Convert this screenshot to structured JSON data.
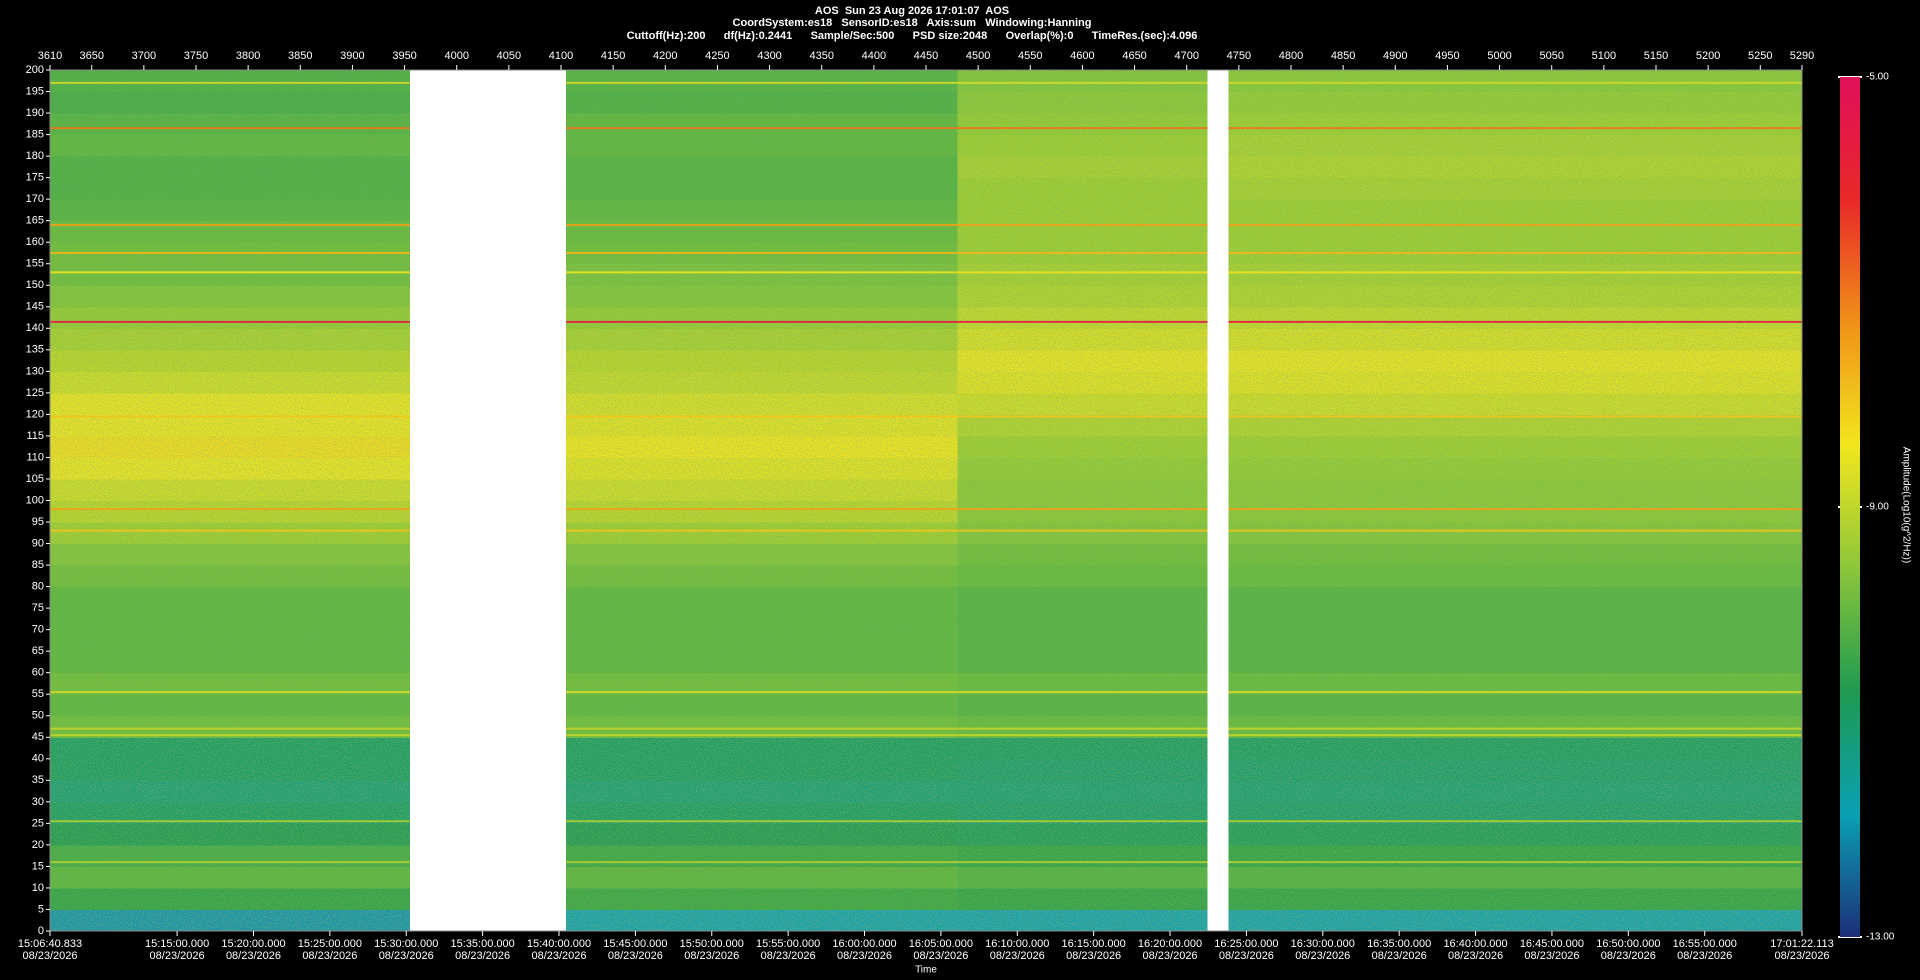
{
  "chart_data": {
    "type": "heatmap",
    "title": "AOS  Sun 23 Aug 2026 17:01:07  AOS",
    "subtitle": "CoordSystem:es18   SensorID:es18   Axis:sum   Windowing:Hanning",
    "info": "Cuttoff(Hz):200      df(Hz):0.2441      Sample/Sec:500      PSD size:2048      Overlap(%):0      TimeRes.(sec):4.096",
    "xlabel": "Time",
    "colorbar_label": "Amplitude(Log10(g^2/Hz))",
    "xlim": [
      3610,
      5290
    ],
    "xticks": [
      3610,
      3650,
      3700,
      3750,
      3800,
      3850,
      3900,
      3950,
      4000,
      4050,
      4100,
      4150,
      4200,
      4250,
      4300,
      4350,
      4400,
      4450,
      4500,
      4550,
      4600,
      4650,
      4700,
      4750,
      4800,
      4850,
      4900,
      4950,
      5000,
      5050,
      5100,
      5150,
      5200,
      5250,
      5290
    ],
    "x2ticks": [
      {
        "value": 3610,
        "label": "15:06:40.833"
      },
      {
        "value": 3731.87,
        "label": "15:15:00.000"
      },
      {
        "value": 3805.11,
        "label": "15:20:00.000"
      },
      {
        "value": 3878.35,
        "label": "15:25:00.000"
      },
      {
        "value": 3951.59,
        "label": "15:30:00.000"
      },
      {
        "value": 4024.84,
        "label": "15:35:00.000"
      },
      {
        "value": 4098.08,
        "label": "15:40:00.000"
      },
      {
        "value": 4171.32,
        "label": "15:45:00.000"
      },
      {
        "value": 4244.56,
        "label": "15:50:00.000"
      },
      {
        "value": 4317.8,
        "label": "15:55:00.000"
      },
      {
        "value": 4391.04,
        "label": "16:00:00.000"
      },
      {
        "value": 4464.29,
        "label": "16:05:00.000"
      },
      {
        "value": 4537.53,
        "label": "16:10:00.000"
      },
      {
        "value": 4610.77,
        "label": "16:15:00.000"
      },
      {
        "value": 4684.01,
        "label": "16:20:00.000"
      },
      {
        "value": 4757.25,
        "label": "16:25:00.000"
      },
      {
        "value": 4830.49,
        "label": "16:30:00.000"
      },
      {
        "value": 4903.74,
        "label": "16:35:00.000"
      },
      {
        "value": 4976.98,
        "label": "16:40:00.000"
      },
      {
        "value": 5050.22,
        "label": "16:45:00.000"
      },
      {
        "value": 5123.46,
        "label": "16:50:00.000"
      },
      {
        "value": 5196.7,
        "label": "16:55:00.000"
      },
      {
        "value": 5290,
        "label": "17:01:22.113"
      }
    ],
    "x2tick_dates": [
      "08/23/2026",
      "08/23/2026",
      "08/23/2026",
      "08/23/2026",
      "08/23/2026",
      "08/23/2026",
      "08/23/2026",
      "08/23/2026",
      "08/23/2026",
      "08/23/2026",
      "08/23/2026",
      "08/23/2026",
      "08/23/2026",
      "08/23/2026",
      "08/23/2026",
      "08/23/2026",
      "08/23/2026",
      "08/23/2026",
      "08/23/2026",
      "08/23/2026",
      "08/23/2026",
      "08/23/2026",
      "08/23/2026"
    ],
    "ylim": [
      0,
      200
    ],
    "yticks": [
      0,
      5,
      10,
      15,
      20,
      25,
      30,
      35,
      40,
      45,
      50,
      55,
      60,
      65,
      70,
      75,
      80,
      85,
      90,
      95,
      100,
      105,
      110,
      115,
      120,
      125,
      130,
      135,
      140,
      145,
      150,
      155,
      160,
      165,
      170,
      175,
      180,
      185,
      190,
      195,
      200
    ],
    "clim": [
      -13,
      -5
    ],
    "cticks": [
      {
        "value": -5,
        "label": "-5.00"
      },
      {
        "value": -9,
        "label": "-9.00"
      },
      {
        "value": -13,
        "label": "-13.00"
      }
    ],
    "colormap": [
      "#1c2f7a",
      "#0aa0b4",
      "#1e9a50",
      "#8cc63a",
      "#f2e61e",
      "#f09018",
      "#e82828",
      "#e0105a"
    ],
    "grid": false,
    "xbins": [
      3610,
      3955,
      4105,
      4480,
      4720,
      4740,
      5290
    ],
    "ybins": [
      0,
      5,
      10,
      15,
      20,
      25,
      30,
      35,
      40,
      45,
      50,
      55,
      60,
      65,
      70,
      75,
      80,
      85,
      90,
      95,
      100,
      105,
      110,
      115,
      120,
      125,
      130,
      135,
      140,
      145,
      150,
      155,
      160,
      165,
      170,
      175,
      180,
      185,
      190,
      195,
      200
    ],
    "values": [
      [
        -12.0,
        null,
        -11.8,
        -11.8,
        null,
        -11.8
      ],
      [
        -10.5,
        null,
        -10.4,
        -10.5,
        null,
        -10.5
      ],
      [
        -10.0,
        null,
        -10.0,
        -10.1,
        null,
        -10.1
      ],
      [
        -10.3,
        null,
        -10.4,
        -10.5,
        null,
        -10.5
      ],
      [
        -10.8,
        null,
        -10.8,
        -10.9,
        null,
        -10.9
      ],
      [
        -11.0,
        null,
        -11.0,
        -11.1,
        null,
        -11.1
      ],
      [
        -11.2,
        null,
        -11.2,
        -11.2,
        null,
        -11.2
      ],
      [
        -11.0,
        null,
        -11.0,
        -11.1,
        null,
        -11.1
      ],
      [
        -11.0,
        null,
        -11.0,
        -11.0,
        null,
        -11.0
      ],
      [
        -9.8,
        null,
        -9.8,
        -9.9,
        null,
        -9.9
      ],
      [
        -10.0,
        null,
        -10.0,
        -10.1,
        null,
        -10.1
      ],
      [
        -9.8,
        null,
        -9.8,
        -9.9,
        null,
        -9.9
      ],
      [
        -10.0,
        null,
        -10.0,
        -10.1,
        null,
        -10.1
      ],
      [
        -10.0,
        null,
        -10.0,
        -10.1,
        null,
        -10.1
      ],
      [
        -10.0,
        null,
        -10.0,
        -10.1,
        null,
        -10.1
      ],
      [
        -10.0,
        null,
        -10.0,
        -10.1,
        null,
        -10.1
      ],
      [
        -9.8,
        null,
        -9.8,
        -9.9,
        null,
        -9.9
      ],
      [
        -9.6,
        null,
        -9.6,
        -9.8,
        null,
        -9.8
      ],
      [
        -9.3,
        null,
        -9.3,
        -9.6,
        null,
        -9.6
      ],
      [
        -9.0,
        null,
        -9.0,
        -9.5,
        null,
        -9.5
      ],
      [
        -8.8,
        null,
        -8.8,
        -9.5,
        null,
        -9.5
      ],
      [
        -8.5,
        null,
        -8.6,
        -9.4,
        null,
        -9.4
      ],
      [
        -8.3,
        null,
        -8.4,
        -9.3,
        null,
        -9.3
      ],
      [
        -8.5,
        null,
        -8.6,
        -9.1,
        null,
        -9.1
      ],
      [
        -8.5,
        null,
        -8.7,
        -8.8,
        null,
        -8.8
      ],
      [
        -8.8,
        null,
        -8.9,
        -8.6,
        null,
        -8.6
      ],
      [
        -9.0,
        null,
        -9.0,
        -8.5,
        null,
        -8.5
      ],
      [
        -9.2,
        null,
        -9.2,
        -8.7,
        null,
        -8.7
      ],
      [
        -9.4,
        null,
        -9.4,
        -8.9,
        null,
        -8.9
      ],
      [
        -9.6,
        null,
        -9.6,
        -9.1,
        null,
        -9.1
      ],
      [
        -9.8,
        null,
        -9.7,
        -9.2,
        null,
        -9.2
      ],
      [
        -9.8,
        null,
        -9.8,
        -9.3,
        null,
        -9.3
      ],
      [
        -9.9,
        null,
        -9.9,
        -9.3,
        null,
        -9.3
      ],
      [
        -10.1,
        null,
        -10.0,
        -9.3,
        null,
        -9.3
      ],
      [
        -10.2,
        null,
        -10.1,
        -9.3,
        null,
        -9.2
      ],
      [
        -10.2,
        null,
        -10.1,
        -9.2,
        null,
        -9.1
      ],
      [
        -10.0,
        null,
        -10.0,
        -9.3,
        null,
        -9.2
      ],
      [
        -10.1,
        null,
        -10.0,
        -9.4,
        null,
        -9.3
      ],
      [
        -10.3,
        null,
        -10.2,
        -9.5,
        null,
        -9.4
      ],
      [
        -10.2,
        null,
        -10.1,
        -9.6,
        null,
        -9.5
      ]
    ],
    "tones": [
      {
        "freq": 141.5,
        "value": -5.5
      },
      {
        "freq": 186.5,
        "value": -7.0
      },
      {
        "freq": 197,
        "value": -8.8
      },
      {
        "freq": 164,
        "value": -7.5
      },
      {
        "freq": 157.5,
        "value": -7.8
      },
      {
        "freq": 153,
        "value": -8.5
      },
      {
        "freq": 98,
        "value": -7.5
      },
      {
        "freq": 93,
        "value": -8.0
      },
      {
        "freq": 119.5,
        "value": -8.0
      },
      {
        "freq": 55.5,
        "value": -8.8
      },
      {
        "freq": 47,
        "value": -9.0
      },
      {
        "freq": 45.5,
        "value": -9.0
      },
      {
        "freq": 25.5,
        "value": -9.2
      },
      {
        "freq": 16,
        "value": -9.2
      }
    ]
  }
}
